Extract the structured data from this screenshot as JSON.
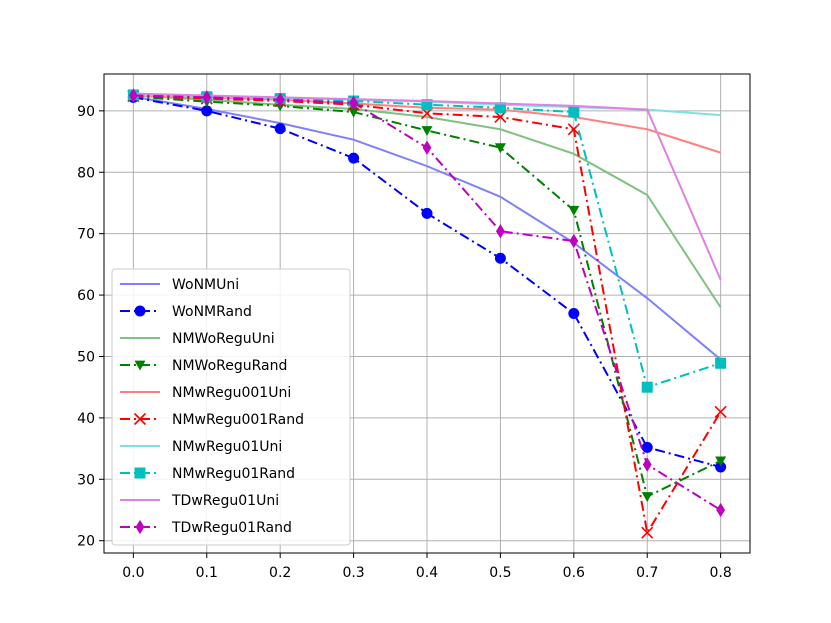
{
  "chart_data": {
    "type": "line",
    "x": [
      0.0,
      0.1,
      0.2,
      0.3,
      0.4,
      0.5,
      0.6,
      0.7,
      0.8
    ],
    "xticks": [
      "0.0",
      "0.1",
      "0.2",
      "0.3",
      "0.4",
      "0.5",
      "0.6",
      "0.7",
      "0.8"
    ],
    "yticks": [
      "20",
      "30",
      "40",
      "50",
      "60",
      "70",
      "80",
      "90"
    ],
    "xlim": [
      -0.04,
      0.84
    ],
    "ylim": [
      18,
      96
    ],
    "grid": true,
    "legend_position": "lower-left",
    "series": [
      {
        "name": "WoNMUni",
        "color": "#8080ff",
        "style": "solid",
        "marker": "none",
        "values": [
          92.3,
          90.3,
          88.0,
          85.3,
          81.0,
          76.0,
          68.5,
          59.5,
          49.5
        ]
      },
      {
        "name": "WoNMRand",
        "color": "#0000ff",
        "style": "dashdot",
        "marker": "circle",
        "values": [
          92.2,
          90.0,
          87.1,
          82.3,
          73.3,
          66.0,
          57.0,
          35.2,
          32.0
        ]
      },
      {
        "name": "NMWoReguUni",
        "color": "#80c080",
        "style": "solid",
        "marker": "none",
        "values": [
          92.5,
          91.8,
          91.0,
          90.3,
          89.0,
          87.0,
          83.0,
          76.3,
          58.0
        ]
      },
      {
        "name": "NMWoReguRand",
        "color": "#008000",
        "style": "dashdot",
        "marker": "triangle-down",
        "values": [
          92.3,
          91.5,
          90.8,
          89.8,
          86.8,
          84.0,
          73.8,
          27.2,
          33.0
        ]
      },
      {
        "name": "NMwRegu001Uni",
        "color": "#ff8080",
        "style": "solid",
        "marker": "none",
        "values": [
          92.6,
          92.2,
          91.8,
          91.2,
          90.5,
          90.2,
          89.0,
          87.0,
          83.2
        ]
      },
      {
        "name": "NMwRegu001Rand",
        "color": "#ff0000",
        "style": "dashdot",
        "marker": "x",
        "values": [
          92.4,
          92.0,
          91.6,
          91.0,
          89.6,
          89.0,
          87.0,
          21.3,
          41.0
        ]
      },
      {
        "name": "NMwRegu01Uni",
        "color": "#80e0e0",
        "style": "solid",
        "marker": "none",
        "values": [
          92.7,
          92.4,
          92.1,
          91.8,
          91.5,
          91.0,
          90.6,
          90.2,
          89.3
        ]
      },
      {
        "name": "NMwRegu01Rand",
        "color": "#00bfbf",
        "style": "dashdot",
        "marker": "square",
        "values": [
          92.6,
          92.3,
          92.0,
          91.6,
          91.0,
          90.5,
          89.8,
          45.0,
          48.9
        ]
      },
      {
        "name": "TDwRegu01Uni",
        "color": "#e080e0",
        "style": "solid",
        "marker": "none",
        "values": [
          92.8,
          92.5,
          92.2,
          91.9,
          91.6,
          91.2,
          90.8,
          90.2,
          62.5
        ]
      },
      {
        "name": "TDwRegu01Rand",
        "color": "#bf00bf",
        "style": "dashdot",
        "marker": "diamond",
        "values": [
          92.5,
          92.2,
          91.8,
          91.3,
          84.0,
          70.4,
          68.8,
          32.4,
          25.0
        ]
      }
    ]
  }
}
